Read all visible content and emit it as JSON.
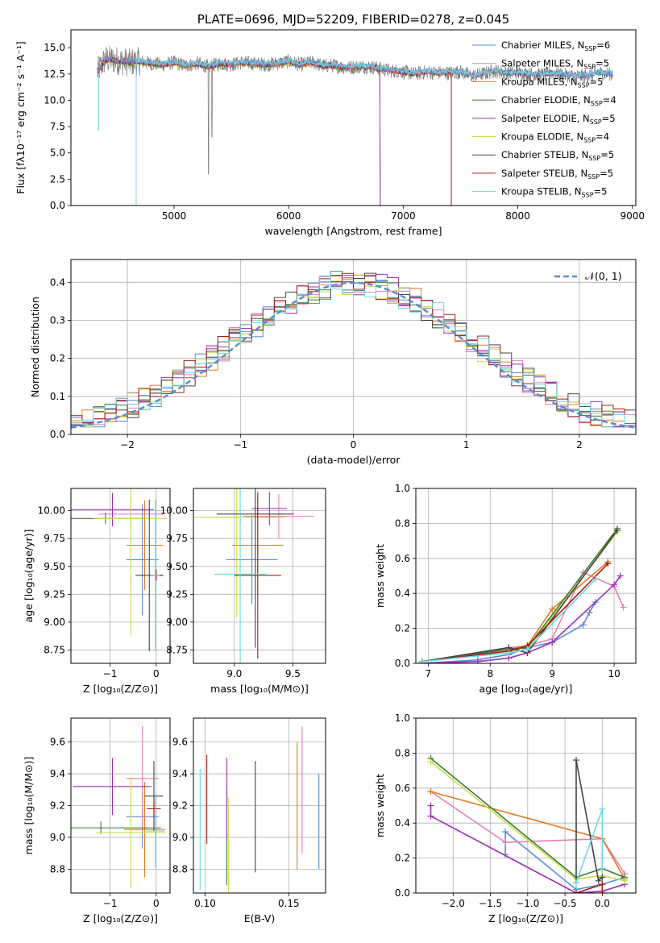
{
  "colors": {
    "chabrier_miles": "#5b8bd6",
    "salpeter_miles": "#e87fb6",
    "kroupa_miles": "#e07b22",
    "chabrier_elodie": "#3d7a3d",
    "salpeter_elodie": "#9b2fb5",
    "kroupa_elodie": "#c8e04a",
    "chabrier_stelib": "#444444",
    "salpeter_stelib": "#a61c1c",
    "kroupa_stelib": "#6fd8dd",
    "grid": "#b0b0b0",
    "gauss": "#5b8bd6"
  },
  "chart_data": [
    {
      "id": "spectrum",
      "type": "line",
      "title": "PLATE=0696, MJD=52209, FIBERID=0278, z=0.045",
      "xlabel": "wavelength [Angstrom, rest frame]",
      "ylabel": "Flux [fλ10⁻¹⁷ erg cm⁻² s⁻¹ A⁻¹]",
      "xlim": [
        4100,
        9030
      ],
      "ylim": [
        0,
        16.7
      ],
      "xticks": [
        5000,
        6000,
        7000,
        8000,
        9000
      ],
      "yticks": [
        0.0,
        2.5,
        5.0,
        7.5,
        10.0,
        12.5,
        15.0
      ],
      "ytick_labels": [
        "0.0",
        "2.5",
        "5.0",
        "7.5",
        "10.0",
        "12.5",
        "15.0"
      ],
      "grid": false,
      "legend_position": "upper-right",
      "legend": [
        {
          "label": "Chabrier MILES, N",
          "sub": "SSP",
          "n": "=6",
          "color": "chabrier_miles"
        },
        {
          "label": "Salpeter MILES, N",
          "sub": "SSP",
          "n": "=5",
          "color": "salpeter_miles"
        },
        {
          "label": "Kroupa MILES, N",
          "sub": "SSP",
          "n": "=5",
          "color": "kroupa_miles"
        },
        {
          "label": "Chabrier ELODIE, N",
          "sub": "SSP",
          "n": "=4",
          "color": "chabrier_elodie"
        },
        {
          "label": "Salpeter ELODIE, N",
          "sub": "SSP",
          "n": "=5",
          "color": "salpeter_elodie"
        },
        {
          "label": "Kroupa ELODIE, N",
          "sub": "SSP",
          "n": "=4",
          "color": "kroupa_elodie"
        },
        {
          "label": "Chabrier STELIB, N",
          "sub": "SSP",
          "n": "=5",
          "color": "chabrier_stelib"
        },
        {
          "label": "Salpeter STELIB, N",
          "sub": "SSP",
          "n": "=5",
          "color": "salpeter_stelib"
        },
        {
          "label": "Kroupa STELIB, N",
          "sub": "SSP",
          "n": "=5",
          "color": "kroupa_stelib"
        }
      ],
      "data_trace": {
        "x": [
          4330,
          4400,
          4500,
          4600,
          4700,
          4800,
          4900,
          5000,
          5100,
          5200,
          5300,
          5400,
          5500,
          5600,
          5700,
          5800,
          5900,
          6000,
          6100,
          6200,
          6300,
          6400,
          6500,
          6600,
          6700,
          6800,
          6900,
          7000,
          7100,
          7200,
          7300,
          7400,
          7500,
          7600,
          7700,
          7800,
          7900,
          8000,
          8100,
          8200,
          8300,
          8400,
          8500,
          8600,
          8700,
          8800,
          8830
        ],
        "y": [
          12.7,
          13.9,
          13.8,
          13.6,
          13.7,
          13.5,
          13.4,
          13.6,
          13.3,
          13.5,
          13.2,
          13.5,
          13.4,
          13.6,
          13.5,
          13.4,
          13.5,
          13.7,
          13.4,
          13.6,
          13.3,
          13.3,
          13.1,
          13.2,
          13.2,
          13.0,
          12.8,
          12.7,
          12.5,
          12.7,
          12.6,
          12.6,
          12.7,
          12.3,
          12.5,
          12.8,
          12.6,
          12.6,
          12.5,
          12.4,
          12.6,
          12.4,
          12.3,
          12.3,
          12.6,
          12.5,
          12.5
        ]
      },
      "model_curves": {
        "chabrier_miles": {
          "start": 4330,
          "end": 8830
        },
        "salpeter_miles": {
          "start": 4330,
          "end": 8830
        },
        "kroupa_miles": {
          "start": 4330,
          "end": 7420
        },
        "chabrier_elodie": {
          "start": 4330,
          "end": 6800
        },
        "salpeter_elodie": {
          "start": 4330,
          "end": 6800
        },
        "kroupa_elodie": {
          "start": 4330,
          "end": 6800
        },
        "chabrier_stelib": {
          "start": 4330,
          "end": 8830
        },
        "salpeter_stelib": {
          "start": 4330,
          "end": 7420
        },
        "kroupa_stelib": {
          "start": 4670,
          "end": 8830
        }
      }
    },
    {
      "id": "residuals",
      "type": "bar",
      "xlabel": "(data-model)/error",
      "ylabel": "Normed distribution",
      "xlim": [
        -2.5,
        2.5
      ],
      "ylim": [
        0,
        0.46
      ],
      "xticks": [
        -2,
        -1,
        0,
        1,
        2
      ],
      "xtick_labels": [
        "−2",
        "−1",
        "0",
        "1",
        "2"
      ],
      "yticks": [
        0.0,
        0.1,
        0.2,
        0.3,
        0.4
      ],
      "ytick_labels": [
        "0.0",
        "0.1",
        "0.2",
        "0.3",
        "0.4"
      ],
      "grid": true,
      "legend_position": "upper-right",
      "legend_label": "𝒩(0, 1)",
      "bin_width": 0.1,
      "gauss_mu": 0,
      "gauss_sigma": 1
    },
    {
      "id": "age_vs_Z",
      "type": "scatter",
      "xlabel": "Z [log₁₀(Z/Z⊙)]",
      "ylabel": "age  [log₁₀(age/yr)]",
      "xlim": [
        -1.85,
        0.3
      ],
      "ylim": [
        8.63,
        10.2
      ],
      "xticks": [
        -1,
        0
      ],
      "xtick_labels": [
        "−1",
        "0"
      ],
      "yticks": [
        8.75,
        9.0,
        9.25,
        9.5,
        9.75,
        10.0
      ],
      "ytick_labels": [
        "8.75",
        "9.00",
        "9.25",
        "9.50",
        "9.75",
        "10.00"
      ],
      "grid": true,
      "points": [
        {
          "s": "chabrier_miles",
          "x": -0.3,
          "xe": 0.35,
          "y": 9.56,
          "ye": 0.5
        },
        {
          "s": "salpeter_miles",
          "x": -0.55,
          "xe": 0.7,
          "y": 9.97,
          "ye": 0.12
        },
        {
          "s": "kroupa_miles",
          "x": -0.25,
          "xe": 0.4,
          "y": 9.69,
          "ye": 0.4
        },
        {
          "s": "chabrier_elodie",
          "x": -1.1,
          "xe": 0.9,
          "y": 9.93,
          "ye": 0.05
        },
        {
          "s": "salpeter_elodie",
          "x": -0.95,
          "xe": 0.9,
          "y": 10.01,
          "ye": 0.15
        },
        {
          "s": "kroupa_elodie",
          "x": -0.55,
          "xe": 0.8,
          "y": 9.93,
          "ye": 1.05
        },
        {
          "s": "chabrier_stelib",
          "x": -0.15,
          "xe": 0.3,
          "y": 9.42,
          "ye": 0.68
        },
        {
          "s": "salpeter_stelib",
          "x": 0.0,
          "xe": 0.15,
          "y": 9.42,
          "ye": 0.05
        },
        {
          "s": "kroupa_stelib",
          "x": -0.02,
          "xe": 0.1,
          "y": 9.42,
          "ye": 0.68
        }
      ]
    },
    {
      "id": "age_vs_mass",
      "type": "scatter",
      "xlabel": "mass [log₁₀(M/M⊙)]",
      "xlim": [
        8.65,
        9.78
      ],
      "ylim": [
        8.63,
        10.2
      ],
      "xticks": [
        9.0,
        9.5
      ],
      "xtick_labels": [
        "9.0",
        "9.5"
      ],
      "yticks": [
        8.75,
        9.0,
        9.25,
        9.5,
        9.75,
        10.0
      ],
      "ytick_labels": [
        "8.75",
        "9.00",
        "9.25",
        "9.50",
        "9.75",
        "10.00"
      ],
      "grid": true,
      "points": [
        {
          "s": "chabrier_miles",
          "x": 9.15,
          "xe": 0.22,
          "y": 9.56,
          "ye": 0.4
        },
        {
          "s": "salpeter_miles",
          "x": 9.38,
          "xe": 0.3,
          "y": 9.95,
          "ye": 0.2
        },
        {
          "s": "kroupa_miles",
          "x": 9.2,
          "xe": 0.22,
          "y": 9.69,
          "ye": 0.45
        },
        {
          "s": "chabrier_elodie",
          "x": 9.05,
          "xe": 0.3,
          "y": 9.94,
          "ye": 0.05
        },
        {
          "s": "salpeter_elodie",
          "x": 9.3,
          "xe": 0.15,
          "y": 10.02,
          "ye": 0.15
        },
        {
          "s": "kroupa_elodie",
          "x": 9.02,
          "xe": 0.4,
          "y": 9.94,
          "ye": 0.9
        },
        {
          "s": "chabrier_stelib",
          "x": 9.18,
          "xe": 0.33,
          "y": 9.97,
          "ye": 1.2
        },
        {
          "s": "salpeter_stelib",
          "x": 9.2,
          "xe": 0.2,
          "y": 9.42,
          "ye": 0.75
        },
        {
          "s": "kroupa_stelib",
          "x": 9.05,
          "xe": 0.22,
          "y": 9.43,
          "ye": 0.8
        }
      ]
    },
    {
      "id": "massweight_vs_age",
      "type": "line",
      "xlabel": "age  [log₁₀(age/yr)]",
      "ylabel": "mass weight",
      "xlim": [
        6.8,
        10.35
      ],
      "ylim": [
        0,
        1.0
      ],
      "xticks": [
        7,
        8,
        9,
        10
      ],
      "xtick_labels": [
        "7",
        "8",
        "9",
        "10"
      ],
      "yticks": [
        0.0,
        0.2,
        0.4,
        0.6,
        0.8,
        1.0
      ],
      "ytick_labels": [
        "0.0",
        "0.2",
        "0.4",
        "0.6",
        "0.8",
        "1.0"
      ],
      "grid": true,
      "series": [
        {
          "s": "chabrier_miles",
          "x": [
            6.9,
            7.8,
            8.3,
            8.6,
            9.0,
            9.5,
            9.6,
            9.7
          ],
          "y": [
            0.0,
            0.02,
            0.05,
            0.09,
            0.12,
            0.22,
            0.29,
            0.35
          ]
        },
        {
          "s": "salpeter_miles",
          "x": [
            6.9,
            8.3,
            8.6,
            9.0,
            9.5,
            10.0,
            10.15
          ],
          "y": [
            0.01,
            0.09,
            0.1,
            0.14,
            0.52,
            0.44,
            0.32
          ]
        },
        {
          "s": "kroupa_miles",
          "x": [
            6.9,
            8.3,
            8.6,
            9.0,
            9.9
          ],
          "y": [
            0.01,
            0.08,
            0.1,
            0.31,
            0.58
          ]
        },
        {
          "s": "chabrier_elodie",
          "x": [
            6.9,
            8.3,
            8.6,
            10.05
          ],
          "y": [
            0.01,
            0.08,
            0.09,
            0.77
          ]
        },
        {
          "s": "salpeter_elodie",
          "x": [
            6.9,
            7.8,
            8.3,
            8.6,
            9.0,
            10.0,
            10.1
          ],
          "y": [
            0.0,
            0.01,
            0.03,
            0.06,
            0.12,
            0.45,
            0.5
          ]
        },
        {
          "s": "kroupa_elodie",
          "x": [
            6.9,
            8.3,
            8.6,
            10.05
          ],
          "y": [
            0.01,
            0.07,
            0.08,
            0.75
          ]
        },
        {
          "s": "chabrier_stelib",
          "x": [
            6.9,
            8.3,
            8.6,
            10.05
          ],
          "y": [
            0.01,
            0.09,
            0.06,
            0.76
          ]
        },
        {
          "s": "salpeter_stelib",
          "x": [
            6.9,
            8.3,
            8.6,
            9.9
          ],
          "y": [
            0.01,
            0.07,
            0.1,
            0.57
          ]
        },
        {
          "s": "kroupa_stelib",
          "x": [
            6.9,
            8.3,
            8.6,
            9.7
          ],
          "y": [
            0.01,
            0.06,
            0.08,
            0.48
          ]
        }
      ]
    },
    {
      "id": "mass_vs_Z",
      "type": "scatter",
      "xlabel": "Z [log₁₀(Z/Z⊙)]",
      "ylabel": "mass [log₁₀(M/M⊙)]",
      "xlim": [
        -1.85,
        0.3
      ],
      "ylim": [
        8.65,
        9.75
      ],
      "xticks": [
        -1,
        0
      ],
      "xtick_labels": [
        "−1",
        "0"
      ],
      "yticks": [
        8.8,
        9.0,
        9.2,
        9.4,
        9.6
      ],
      "ytick_labels": [
        "8.8",
        "9.0",
        "9.2",
        "9.4",
        "9.6"
      ],
      "grid": true,
      "points": [
        {
          "s": "chabrier_miles",
          "x": -0.3,
          "xe": 0.35,
          "y": 9.13,
          "ye": 0.2
        },
        {
          "s": "salpeter_miles",
          "x": -0.3,
          "xe": 0.35,
          "y": 9.37,
          "ye": 0.33
        },
        {
          "s": "kroupa_miles",
          "x": -0.25,
          "xe": 0.45,
          "y": 9.05,
          "ye": 0.3
        },
        {
          "s": "chabrier_elodie",
          "x": -1.2,
          "xe": 1.3,
          "y": 9.06,
          "ye": 0.04
        },
        {
          "s": "salpeter_elodie",
          "x": -0.95,
          "xe": 0.85,
          "y": 9.32,
          "ye": 0.18
        },
        {
          "s": "kroupa_elodie",
          "x": -0.55,
          "xe": 0.75,
          "y": 9.03,
          "ye": 0.35
        },
        {
          "s": "chabrier_stelib",
          "x": -0.05,
          "xe": 0.2,
          "y": 9.26,
          "ye": 0.22
        },
        {
          "s": "salpeter_stelib",
          "x": -0.05,
          "xe": 0.15,
          "y": 9.18,
          "ye": 0.05
        },
        {
          "s": "kroupa_stelib",
          "x": -0.02,
          "xe": 0.2,
          "y": 9.04,
          "ye": 0.23
        }
      ]
    },
    {
      "id": "mass_vs_ebv",
      "type": "scatter",
      "xlabel": "E(B-V)",
      "xlim": [
        0.093,
        0.172
      ],
      "ylim": [
        8.65,
        9.75
      ],
      "xticks": [
        0.1,
        0.15
      ],
      "xtick_labels": [
        "0.10",
        "0.15"
      ],
      "yticks": [
        8.8,
        9.0,
        9.2,
        9.4,
        9.6
      ],
      "ytick_labels": [
        "8.8",
        "9.0",
        "9.2",
        "9.4",
        "9.6"
      ],
      "grid": true,
      "points": [
        {
          "s": "chabrier_miles",
          "x": 0.168,
          "xe": 0,
          "y": 9.1,
          "ye": 0.3
        },
        {
          "s": "salpeter_miles",
          "x": 0.158,
          "xe": 0,
          "y": 9.3,
          "ye": 0.4
        },
        {
          "s": "kroupa_miles",
          "x": 0.155,
          "xe": 0,
          "y": 9.2,
          "ye": 0.4
        },
        {
          "s": "chabrier_elodie",
          "x": 0.113,
          "xe": 0,
          "y": 9.0,
          "ye": 0.3
        },
        {
          "s": "salpeter_elodie",
          "x": 0.113,
          "xe": 0,
          "y": 9.24,
          "ye": 0.26
        },
        {
          "s": "kroupa_elodie",
          "x": 0.114,
          "xe": 0,
          "y": 8.95,
          "ye": 0.3
        },
        {
          "s": "chabrier_stelib",
          "x": 0.13,
          "xe": 0,
          "y": 9.13,
          "ye": 0.35
        },
        {
          "s": "salpeter_stelib",
          "x": 0.101,
          "xe": 0,
          "y": 9.24,
          "ye": 0.28
        },
        {
          "s": "kroupa_stelib",
          "x": 0.097,
          "xe": 0,
          "y": 9.05,
          "ye": 0.38
        }
      ]
    },
    {
      "id": "massweight_vs_Z",
      "type": "line",
      "xlabel": "Z [log₁₀(Z/Z⊙)]",
      "ylabel": "mass weight",
      "xlim": [
        -2.5,
        0.45
      ],
      "ylim": [
        0,
        1.0
      ],
      "xticks": [
        -2.0,
        -1.5,
        -1.0,
        -0.5,
        0.0
      ],
      "xtick_labels": [
        "−2.0",
        "−1.5",
        "−1.0",
        "−0.5",
        "0.0"
      ],
      "yticks": [
        0.0,
        0.2,
        0.4,
        0.6,
        0.8,
        1.0
      ],
      "ytick_labels": [
        "0.0",
        "0.2",
        "0.4",
        "0.6",
        "0.8",
        "1.0"
      ],
      "grid": true,
      "series": [
        {
          "s": "chabrier_miles",
          "x": [
            -1.3,
            -1.3,
            -0.35,
            0.0,
            0.3
          ],
          "y": [
            0.22,
            0.35,
            0.02,
            0.05,
            0.09
          ]
        },
        {
          "s": "salpeter_miles",
          "x": [
            -2.3,
            -1.3,
            0.0,
            0.3
          ],
          "y": [
            0.58,
            0.29,
            0.31,
            0.11
          ]
        },
        {
          "s": "kroupa_miles",
          "x": [
            -2.3,
            0.0,
            0.3
          ],
          "y": [
            0.58,
            0.31,
            0.08
          ]
        },
        {
          "s": "chabrier_elodie",
          "x": [
            -2.3,
            -0.35,
            0.0,
            0.3
          ],
          "y": [
            0.77,
            0.09,
            0.14,
            0.09
          ]
        },
        {
          "s": "salpeter_elodie",
          "x": [
            -2.3,
            -2.3,
            -0.35,
            0.0,
            0.3
          ],
          "y": [
            0.5,
            0.44,
            0.0,
            0.01,
            0.05
          ]
        },
        {
          "s": "kroupa_elodie",
          "x": [
            -2.3,
            -0.35,
            0.0,
            0.3
          ],
          "y": [
            0.75,
            0.08,
            0.1,
            0.07
          ]
        },
        {
          "s": "chabrier_stelib",
          "x": [
            -0.35,
            -0.35,
            -0.05,
            0.0
          ],
          "y": [
            0.06,
            0.76,
            0.07,
            0.09
          ]
        },
        {
          "s": "salpeter_stelib",
          "x": [
            -0.35,
            0.0,
            0.0
          ],
          "y": [
            0.0,
            0.05,
            0.0
          ]
        },
        {
          "s": "kroupa_stelib",
          "x": [
            -0.35,
            0.0,
            0.0
          ],
          "y": [
            0.06,
            0.48,
            0.14
          ]
        }
      ]
    }
  ]
}
